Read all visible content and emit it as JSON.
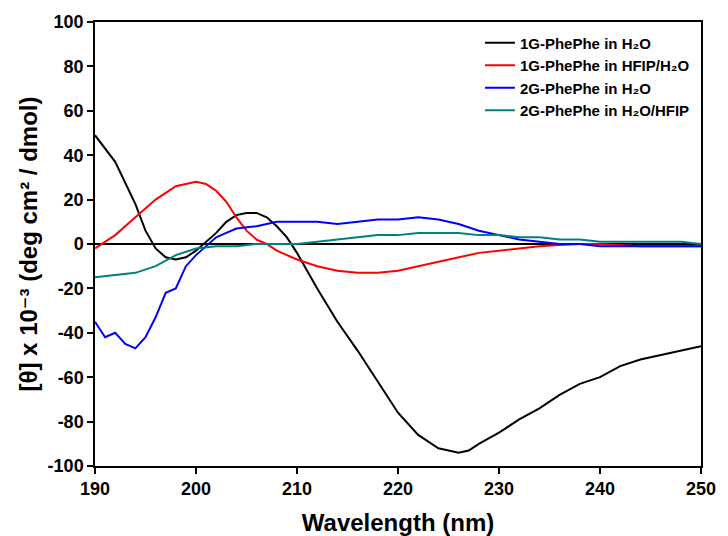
{
  "chart_data": {
    "type": "line",
    "x_label": "Wavelength (nm)",
    "y_label": "[θ] x 10⁻³ (deg cm² / dmol)",
    "xlim": [
      190,
      250
    ],
    "xticks": [
      190,
      200,
      210,
      220,
      230,
      240,
      250
    ],
    "ylim": [
      -100,
      100
    ],
    "yticks": [
      -100,
      -80,
      -60,
      -40,
      -20,
      0,
      20,
      40,
      60,
      80,
      100
    ],
    "grid": false,
    "legend": "upper right",
    "series": [
      {
        "name": "1G-PhePhe in H₂O",
        "color": "#000000",
        "x": [
          190,
          192,
          194,
          195,
          196,
          197,
          198,
          199,
          200,
          201,
          202,
          203,
          204,
          205,
          206,
          207,
          208,
          209,
          210,
          212,
          214,
          216,
          218,
          220,
          222,
          224,
          226,
          227,
          228,
          230,
          232,
          234,
          236,
          238,
          240,
          242,
          244,
          246,
          248,
          250
        ],
        "values": [
          49,
          37,
          18,
          6,
          -2,
          -6,
          -7,
          -6,
          -3,
          1,
          5,
          10,
          13,
          14,
          14,
          12,
          8,
          3,
          -4,
          -20,
          -35,
          -48,
          -62,
          -76,
          -86,
          -92,
          -94,
          -93,
          -90,
          -85,
          -79,
          -74,
          -68,
          -63,
          -60,
          -55,
          -52,
          -50,
          -48,
          -46
        ]
      },
      {
        "name": "1G-PhePhe in HFIP/H₂O",
        "color": "#ff0000",
        "x": [
          190,
          192,
          194,
          196,
          198,
          199,
          200,
          201,
          202,
          203,
          204,
          205,
          206,
          207,
          208,
          210,
          212,
          214,
          216,
          218,
          220,
          222,
          224,
          226,
          228,
          230,
          232,
          234,
          236,
          238,
          240,
          242,
          244,
          246,
          248,
          250
        ],
        "values": [
          -2,
          4,
          12,
          20,
          26,
          27,
          28,
          27,
          24,
          19,
          12,
          6,
          2,
          0,
          -3,
          -7,
          -10,
          -12,
          -13,
          -13,
          -12,
          -10,
          -8,
          -6,
          -4,
          -3,
          -2,
          -1,
          -0.5,
          0,
          0,
          -0.5,
          -1,
          -1,
          -1,
          -1
        ]
      },
      {
        "name": "2G-PhePhe in H₂O",
        "color": "#0000ff",
        "x": [
          190,
          191,
          192,
          193,
          194,
          195,
          196,
          197,
          198,
          199,
          200,
          201,
          202,
          203,
          204,
          206,
          208,
          210,
          212,
          214,
          216,
          218,
          220,
          222,
          224,
          226,
          228,
          230,
          232,
          234,
          236,
          238,
          240,
          245,
          250
        ],
        "values": [
          -35,
          -42,
          -40,
          -45,
          -47,
          -42,
          -33,
          -22,
          -20,
          -10,
          -5,
          -1,
          3,
          5,
          7,
          8,
          10,
          10,
          10,
          9,
          10,
          11,
          11,
          12,
          11,
          9,
          6,
          4,
          2,
          1,
          0,
          0,
          -1,
          -1,
          -1
        ]
      },
      {
        "name": "2G-PhePhe in H₂O/HFIP",
        "color": "#008080",
        "x": [
          190,
          192,
          194,
          196,
          198,
          200,
          202,
          204,
          206,
          208,
          210,
          212,
          214,
          216,
          218,
          220,
          222,
          224,
          226,
          228,
          230,
          232,
          234,
          236,
          238,
          240,
          242,
          244,
          246,
          248,
          250
        ],
        "values": [
          -15,
          -14,
          -13,
          -10,
          -5,
          -2,
          -1,
          -1,
          0,
          0,
          0,
          1,
          2,
          3,
          4,
          4,
          5,
          5,
          5,
          4,
          4,
          3,
          3,
          2,
          2,
          1,
          1,
          1,
          1,
          1,
          0
        ]
      }
    ]
  }
}
